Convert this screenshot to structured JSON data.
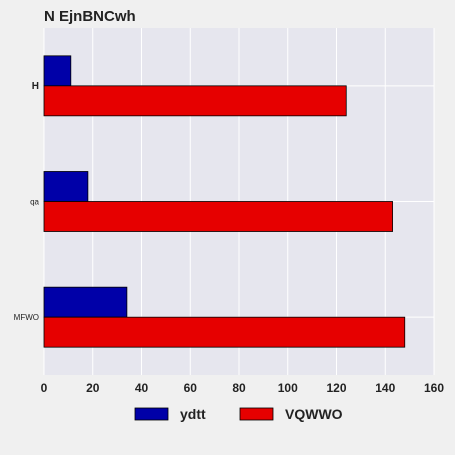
{
  "chart_data": {
    "type": "bar",
    "orientation": "horizontal",
    "title": "N EjnBNCwh",
    "xlabel": "",
    "ylabel": "",
    "categories": [
      "H",
      "qa",
      "MFWO"
    ],
    "series": [
      {
        "name": "ydtt",
        "color": "#0000a8",
        "values": [
          11,
          18,
          34
        ]
      },
      {
        "name": "VQWWO",
        "color": "#e60000",
        "values": [
          124,
          143,
          148
        ]
      }
    ],
    "xlim": [
      0,
      160
    ],
    "xticks": [
      "0",
      "20",
      "40",
      "60",
      "80",
      "100",
      "120",
      "140",
      "160"
    ],
    "grid": true,
    "legend_position": "bottom"
  }
}
